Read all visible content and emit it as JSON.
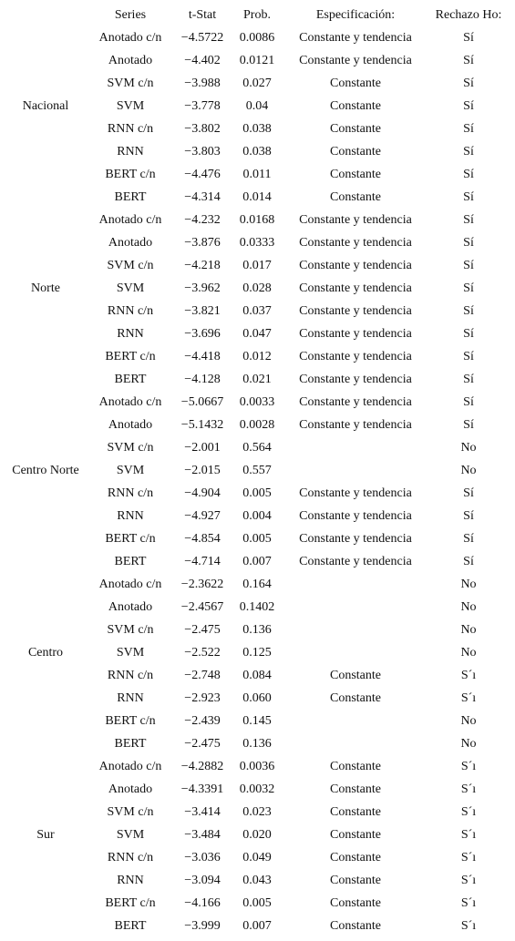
{
  "table": {
    "header": [
      "Series",
      "t-Stat",
      "Prob.",
      "Especificación:",
      "Rechazo Ho:"
    ],
    "groups": [
      {
        "region": "Nacional",
        "rows": [
          {
            "series": "Anotado c/n",
            "t_stat": "−4.5722",
            "prob": "0.0086",
            "spec": "Constante y tendencia",
            "reject": "Sí"
          },
          {
            "series": "Anotado",
            "t_stat": "−4.402",
            "prob": "0.0121",
            "spec": "Constante y tendencia",
            "reject": "Sí"
          },
          {
            "series": "SVM c/n",
            "t_stat": "−3.988",
            "prob": "0.027",
            "spec": "Constante",
            "reject": "Sí"
          },
          {
            "series": "SVM",
            "t_stat": "−3.778",
            "prob": "0.04",
            "spec": "Constante",
            "reject": "Sí"
          },
          {
            "series": "RNN c/n",
            "t_stat": "−3.802",
            "prob": "0.038",
            "spec": "Constante",
            "reject": "Sí"
          },
          {
            "series": "RNN",
            "t_stat": "−3.803",
            "prob": "0.038",
            "spec": "Constante",
            "reject": "Sí"
          },
          {
            "series": "BERT c/n",
            "t_stat": "−4.476",
            "prob": "0.011",
            "spec": "Constante",
            "reject": "Sí"
          },
          {
            "series": "BERT",
            "t_stat": "−4.314",
            "prob": "0.014",
            "spec": "Constante",
            "reject": "Sí"
          }
        ]
      },
      {
        "region": "Norte",
        "rows": [
          {
            "series": "Anotado c/n",
            "t_stat": "−4.232",
            "prob": "0.0168",
            "spec": "Constante y tendencia",
            "reject": "Sí"
          },
          {
            "series": "Anotado",
            "t_stat": "−3.876",
            "prob": "0.0333",
            "spec": "Constante y tendencia",
            "reject": "Sí"
          },
          {
            "series": "SVM c/n",
            "t_stat": "−4.218",
            "prob": "0.017",
            "spec": "Constante y tendencia",
            "reject": "Sí"
          },
          {
            "series": "SVM",
            "t_stat": "−3.962",
            "prob": "0.028",
            "spec": "Constante y tendencia",
            "reject": "Sí"
          },
          {
            "series": "RNN c/n",
            "t_stat": "−3.821",
            "prob": "0.037",
            "spec": "Constante y tendencia",
            "reject": "Sí"
          },
          {
            "series": "RNN",
            "t_stat": "−3.696",
            "prob": "0.047",
            "spec": "Constante y tendencia",
            "reject": "Sí"
          },
          {
            "series": "BERT c/n",
            "t_stat": "−4.418",
            "prob": "0.012",
            "spec": "Constante y tendencia",
            "reject": "Sí"
          },
          {
            "series": "BERT",
            "t_stat": "−4.128",
            "prob": "0.021",
            "spec": "Constante y tendencia",
            "reject": "Sí"
          }
        ]
      },
      {
        "region": "Centro Norte",
        "rows": [
          {
            "series": "Anotado c/n",
            "t_stat": "−5.0667",
            "prob": "0.0033",
            "spec": "Constante y tendencia",
            "reject": "Sí"
          },
          {
            "series": "Anotado",
            "t_stat": "−5.1432",
            "prob": "0.0028",
            "spec": "Constante y tendencia",
            "reject": "Sí"
          },
          {
            "series": "SVM c/n",
            "t_stat": "−2.001",
            "prob": "0.564",
            "reject": "No"
          },
          {
            "series": "SVM",
            "t_stat": "−2.015",
            "prob": "0.557",
            "reject": "No"
          },
          {
            "series": "RNN c/n",
            "t_stat": "−4.904",
            "prob": "0.005",
            "spec": "Constante y tendencia",
            "reject": "Sí"
          },
          {
            "series": "RNN",
            "t_stat": "−4.927",
            "prob": "0.004",
            "spec": "Constante y tendencia",
            "reject": "Sí"
          },
          {
            "series": "BERT c/n",
            "t_stat": "−4.854",
            "prob": "0.005",
            "spec": "Constante y tendencia",
            "reject": "Sí"
          },
          {
            "series": "BERT",
            "t_stat": "−4.714",
            "prob": "0.007",
            "spec": "Constante y tendencia",
            "reject": "Sí"
          }
        ]
      },
      {
        "region": "Centro",
        "rows": [
          {
            "series": "Anotado c/n",
            "t_stat": "−2.3622",
            "prob": "0.164",
            "reject": "No"
          },
          {
            "series": "Anotado",
            "t_stat": "−2.4567",
            "prob": "0.1402",
            "reject": "No"
          },
          {
            "series": "SVM c/n",
            "t_stat": "−2.475",
            "prob": "0.136",
            "reject": "No"
          },
          {
            "series": "SVM",
            "t_stat": "−2.522",
            "prob": "0.125",
            "reject": "No"
          },
          {
            "series": "RNN c/n",
            "t_stat": "−2.748",
            "prob": "0.084",
            "spec": "Constante",
            "reject": "S´ı"
          },
          {
            "series": "RNN",
            "t_stat": "−2.923",
            "prob": "0.060",
            "spec": "Constante",
            "reject": "S´ı"
          },
          {
            "series": "BERT c/n",
            "t_stat": "−2.439",
            "prob": "0.145",
            "reject": "No"
          },
          {
            "series": "BERT",
            "t_stat": "−2.475",
            "prob": "0.136",
            "reject": "No"
          }
        ]
      },
      {
        "region": "Sur",
        "rows": [
          {
            "series": "Anotado c/n",
            "t_stat": "−4.2882",
            "prob": "0.0036",
            "spec": "Constante",
            "reject": "S´ı"
          },
          {
            "series": "Anotado",
            "t_stat": "−4.3391",
            "prob": "0.0032",
            "spec": "Constante",
            "reject": "S´ı"
          },
          {
            "series": "SVM c/n",
            "t_stat": "−3.414",
            "prob": "0.023",
            "spec": "Constante",
            "reject": "S´ı"
          },
          {
            "series": "SVM",
            "t_stat": "−3.484",
            "prob": "0.020",
            "spec": "Constante",
            "reject": "S´ı"
          },
          {
            "series": "RNN c/n",
            "t_stat": "−3.036",
            "prob": "0.049",
            "spec": "Constante",
            "reject": "S´ı"
          },
          {
            "series": "RNN",
            "t_stat": "−3.094",
            "prob": "0.043",
            "spec": "Constante",
            "reject": "S´ı"
          },
          {
            "series": "BERT c/n",
            "t_stat": "−4.166",
            "prob": "0.005",
            "spec": "Constante",
            "reject": "S´ı"
          },
          {
            "series": "BERT",
            "t_stat": "−3.999",
            "prob": "0.007",
            "spec": "Constante",
            "reject": "S´ı"
          }
        ]
      }
    ]
  }
}
